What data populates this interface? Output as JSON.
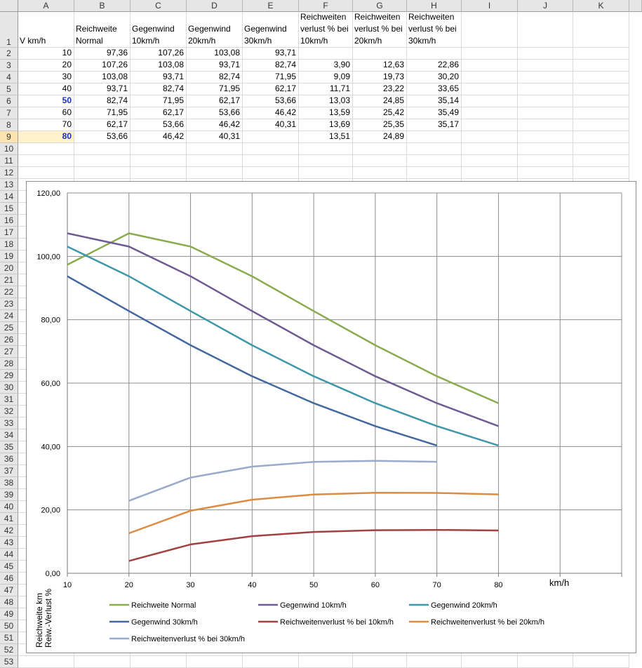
{
  "sheet": {
    "columns": [
      "A",
      "B",
      "C",
      "D",
      "E",
      "F",
      "G",
      "H",
      "I",
      "J",
      "K"
    ],
    "rows": [
      "1",
      "2",
      "3",
      "4",
      "5",
      "6",
      "7",
      "8",
      "9",
      "10",
      "11",
      "12",
      "13",
      "14",
      "15",
      "16",
      "17",
      "18",
      "19",
      "20",
      "21",
      "22",
      "23",
      "24",
      "25",
      "26",
      "27",
      "28",
      "29",
      "30",
      "31",
      "32",
      "33",
      "34",
      "35",
      "36",
      "37",
      "38",
      "39",
      "40",
      "41",
      "42",
      "43",
      "44",
      "45",
      "46",
      "47",
      "48",
      "49",
      "50",
      "51",
      "52",
      "53"
    ],
    "header_row": [
      "V km/h",
      "Reichweite Normal",
      "Gegenwind 10km/h",
      "Gegenwind 20km/h",
      "Gegenwind 30km/h",
      "Reichweiten verlust % bei 10km/h",
      "Reichweiten verlust % bei 20km/h",
      "Reichweiten verlust % bei 30km/h"
    ],
    "data_rows": [
      [
        "10",
        "97,36",
        "107,26",
        "103,08",
        "93,71",
        "",
        "",
        ""
      ],
      [
        "20",
        "107,26",
        "103,08",
        "93,71",
        "82,74",
        "3,90",
        "12,63",
        "22,86"
      ],
      [
        "30",
        "103,08",
        "93,71",
        "82,74",
        "71,95",
        "9,09",
        "19,73",
        "30,20"
      ],
      [
        "40",
        "93,71",
        "82,74",
        "71,95",
        "62,17",
        "11,71",
        "23,22",
        "33,65"
      ],
      [
        "50",
        "82,74",
        "71,95",
        "62,17",
        "53,66",
        "13,03",
        "24,85",
        "35,14"
      ],
      [
        "60",
        "71,95",
        "62,17",
        "53,66",
        "46,42",
        "13,59",
        "25,42",
        "35,49"
      ],
      [
        "70",
        "62,17",
        "53,66",
        "46,42",
        "40,31",
        "13,69",
        "25,35",
        "35,17"
      ],
      [
        "80",
        "53,66",
        "46,42",
        "40,31",
        "",
        "13,51",
        "24,89",
        ""
      ]
    ]
  },
  "chart_data": {
    "type": "line",
    "x": [
      10,
      20,
      30,
      40,
      50,
      60,
      70,
      80
    ],
    "xlim": [
      10,
      100
    ],
    "ylim": [
      0,
      120
    ],
    "x_ticks": [
      "10",
      "20",
      "30",
      "40",
      "50",
      "60",
      "70",
      "80"
    ],
    "y_ticks": [
      "0,00",
      "20,00",
      "40,00",
      "60,00",
      "80,00",
      "100,00",
      "120,00"
    ],
    "xlabel": "km/h",
    "ylabel_lines": [
      "Reichweite km",
      "Reiw.-Verlust %"
    ],
    "grid": true,
    "legend_position": "bottom",
    "series": [
      {
        "name": "Reichweite Normal",
        "color": "#8bab4f",
        "values": [
          97.36,
          107.26,
          103.08,
          93.71,
          82.74,
          71.95,
          62.17,
          53.66
        ]
      },
      {
        "name": "Gegenwind 10km/h",
        "color": "#705a94",
        "values": [
          107.26,
          103.08,
          93.71,
          82.74,
          71.95,
          62.17,
          53.66,
          46.42
        ]
      },
      {
        "name": "Gegenwind 20km/h",
        "color": "#3f97aa",
        "values": [
          103.08,
          93.71,
          82.74,
          71.95,
          62.17,
          53.66,
          46.42,
          40.31
        ]
      },
      {
        "name": "Gegenwind 30km/h",
        "color": "#43679f",
        "values": [
          93.71,
          82.74,
          71.95,
          62.17,
          53.66,
          46.42,
          40.31,
          null
        ]
      },
      {
        "name": "Reichweitenverlust % bei 10km/h",
        "color": "#a34141",
        "values": [
          null,
          3.9,
          9.09,
          11.71,
          13.03,
          13.59,
          13.69,
          13.51
        ]
      },
      {
        "name": "Reichweitenverlust % bei 20km/h",
        "color": "#dd8a42",
        "values": [
          null,
          12.63,
          19.73,
          23.22,
          24.85,
          25.42,
          25.35,
          24.89
        ]
      },
      {
        "name": "Reichweitenverlust % bei 30km/h",
        "color": "#98abcb",
        "values": [
          null,
          22.86,
          30.2,
          33.65,
          35.14,
          35.49,
          35.17,
          null
        ]
      }
    ]
  }
}
